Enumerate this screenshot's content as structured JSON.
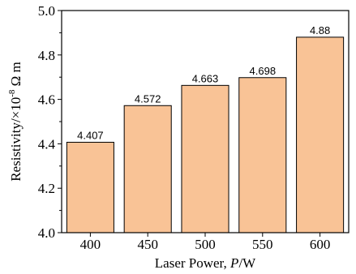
{
  "chart_data": {
    "type": "bar",
    "categories": [
      "400",
      "450",
      "500",
      "550",
      "600"
    ],
    "values": [
      4.407,
      4.572,
      4.663,
      4.698,
      4.88
    ],
    "data_labels": [
      "4.407",
      "4.572",
      "4.663",
      "4.698",
      "4.88"
    ],
    "title": "",
    "xlabel": {
      "text": "Laser Power, ",
      "var": "P",
      "unit": "/W"
    },
    "ylabel": {
      "text": "Resistivity/×10",
      "exp": "-8",
      "unit": " Ω m"
    },
    "ylim": [
      4.0,
      5.0
    ],
    "yticks": [
      "4.0",
      "4.2",
      "4.4",
      "4.6",
      "4.8",
      "5.0"
    ],
    "ytick_values": [
      4.0,
      4.2,
      4.4,
      4.6,
      4.8,
      5.0
    ],
    "grid": false,
    "bar_color": "#f9c396",
    "edge_color": "#000000"
  }
}
